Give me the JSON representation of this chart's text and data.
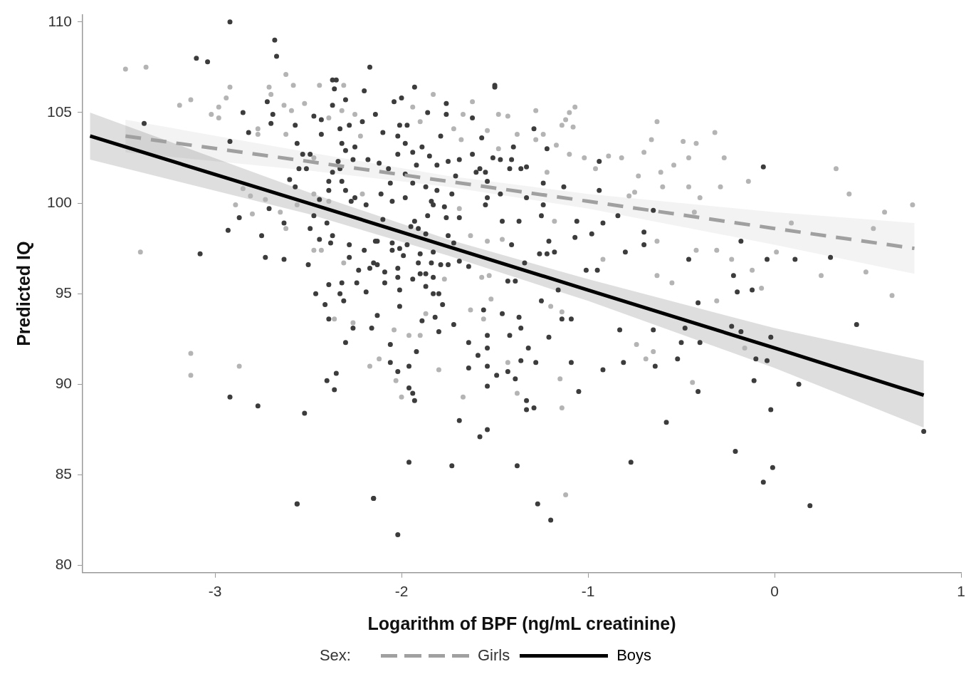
{
  "chart_data": {
    "type": "scatter",
    "xlabel": "Logarithm of BPF (ng/mL creatinine)",
    "ylabel": "Predicted IQ",
    "legend_title": "Sex:",
    "legend": "bottom",
    "marker": "circle",
    "grid": false,
    "xlim": [
      -3.71,
      1
    ],
    "xticks": [
      -3,
      -2,
      -1,
      0,
      1
    ],
    "ylim": [
      79.6,
      110.4
    ],
    "yticks": [
      80,
      85,
      90,
      95,
      100,
      105,
      110
    ],
    "series": [
      {
        "color": "#b4b4b4",
        "x": [
          -3.48,
          -3.37,
          -3.19,
          -3.13,
          -2.92,
          -2.94,
          -2.98,
          -3.02,
          -2.98,
          -2.77,
          -2.77,
          -2.62,
          -2.58,
          -2.71,
          -2.7,
          -2.63,
          -2.59,
          -2.52,
          -2.44,
          -2.31,
          -2.62,
          -2.47,
          -2.47,
          -2.85,
          -2.81,
          -2.73,
          -2.89,
          -2.8,
          -2.65,
          -2.62,
          -2.56,
          -2.47,
          -2.43,
          -3.4,
          -2.31,
          -2.39,
          -2.32,
          -2.25,
          -2.22,
          -2.21,
          -2.39,
          -3.13,
          -3.13,
          -2.87,
          -2.17,
          -2.36,
          -2.26,
          -1.83,
          -1.62,
          -1.28,
          -1.07,
          -1.1,
          -1.12,
          -1.43,
          -1.48,
          -1.67,
          -0.63,
          -0.66,
          -0.7,
          -1.08,
          -1.14,
          -1.24,
          -1.38,
          -1.28,
          -1.17,
          -1.1,
          -1.02,
          -0.96,
          -0.82,
          -0.89,
          -0.73,
          -0.61,
          -0.6,
          -0.78,
          -0.75,
          -1.22,
          -1.18,
          -0.92,
          -0.63,
          -0.63,
          -1.54,
          -1.46,
          -1.63,
          -1.57,
          -1.53,
          -1.77,
          -1.69,
          -1.72,
          -1.68,
          -1.54,
          -1.48,
          -1.94,
          -1.9,
          -0.32,
          -0.49,
          -0.42,
          -0.46,
          -0.27,
          -0.54,
          -0.46,
          -0.29,
          -0.14,
          -0.4,
          0.33,
          0.4,
          0.59,
          0.74,
          0.53,
          0.09,
          -0.43,
          -0.42,
          -0.31,
          -0.23,
          0.01,
          -0.12,
          0.25,
          0.49,
          -0.55,
          -0.07,
          0.63,
          -0.31,
          -0.16,
          -0.44,
          -2.04,
          -1.96,
          -1.9,
          -1.87,
          -2.12,
          -2.03,
          -2.0,
          -1.8,
          -1.67,
          -1.38,
          -1.43,
          -1.15,
          -1.14,
          -1.12,
          -0.74,
          -0.65,
          -0.69,
          -1.2,
          -1.14,
          -1.63,
          -1.52,
          -1.56
        ],
        "values": [
          107.4,
          107.5,
          105.4,
          105.7,
          106.4,
          105.8,
          105.3,
          104.9,
          104.7,
          104.1,
          103.8,
          107.1,
          106.5,
          106.4,
          106.0,
          105.4,
          105.1,
          105.5,
          106.5,
          106.5,
          103.8,
          102.5,
          100.5,
          100.8,
          100.4,
          100.2,
          99.9,
          99.4,
          99.5,
          98.6,
          99.9,
          97.4,
          97.4,
          97.3,
          96.7,
          104.7,
          105.1,
          104.9,
          103.7,
          100.5,
          100.1,
          91.7,
          90.5,
          91.0,
          91.0,
          93.6,
          93.4,
          106.0,
          105.6,
          105.1,
          105.3,
          105.0,
          104.6,
          104.8,
          104.9,
          104.9,
          104.5,
          103.5,
          102.8,
          104.2,
          104.3,
          103.8,
          103.8,
          103.5,
          103.2,
          102.7,
          102.5,
          101.9,
          102.5,
          102.6,
          101.5,
          101.7,
          100.9,
          100.4,
          100.6,
          101.7,
          99.0,
          96.9,
          97.9,
          96.0,
          97.9,
          98.0,
          98.2,
          95.9,
          96.0,
          95.8,
          99.7,
          104.1,
          103.5,
          104.0,
          103.0,
          105.3,
          104.5,
          103.9,
          103.4,
          103.3,
          102.5,
          102.5,
          102.1,
          100.9,
          100.9,
          101.2,
          100.3,
          101.9,
          100.5,
          99.5,
          99.9,
          98.6,
          98.9,
          99.5,
          97.4,
          97.4,
          96.9,
          97.3,
          96.3,
          96.0,
          96.2,
          95.6,
          95.3,
          94.9,
          94.6,
          92.0,
          90.1,
          93.0,
          92.7,
          92.7,
          93.9,
          91.4,
          90.2,
          89.3,
          90.8,
          89.3,
          89.5,
          91.2,
          90.3,
          88.7,
          83.9,
          92.2,
          91.8,
          91.4,
          94.3,
          94.0,
          94.1,
          94.7,
          93.6
        ]
      },
      {
        "color": "#3c3c3c",
        "x": [
          -2.92,
          -2.68,
          -2.67,
          -3.1,
          -3.04,
          -2.17,
          -1.5,
          -2.35,
          -3.38,
          -2.92,
          -2.85,
          -2.7,
          -2.69,
          -2.72,
          -2.82,
          -2.57,
          -2.56,
          -2.53,
          -2.55,
          -2.51,
          -2.6,
          -2.57,
          -2.71,
          -2.87,
          -2.93,
          -2.75,
          -2.73,
          -2.63,
          -3.08,
          -2.63,
          -2.5,
          -2.47,
          -2.4,
          -2.49,
          -2.44,
          -2.38,
          -2.37,
          -2.28,
          -2.2,
          -2.23,
          -2.17,
          -2.28,
          -2.39,
          -2.32,
          -2.24,
          -2.46,
          -2.33,
          -2.19,
          -2.49,
          -2.37,
          -2.36,
          -2.3,
          -2.37,
          -2.2,
          -2.47,
          -2.43,
          -2.28,
          -2.21,
          -2.14,
          -2.43,
          -2.33,
          -2.25,
          -2.32,
          -2.3,
          -2.18,
          -2.26,
          -2.34,
          -2.37,
          -2.33,
          -2.39,
          -2.32,
          -2.39,
          -2.3,
          -2.27,
          -2.25,
          -2.44,
          -2.19,
          -2.14,
          -2.15,
          -2.92,
          -2.77,
          -2.52,
          -2.56,
          -2.15,
          -2.4,
          -2.35,
          -2.36,
          -2.3,
          -2.26,
          -2.16,
          -2.41,
          -2.31,
          -2.39,
          -1.93,
          -1.5,
          -2.04,
          -2.0,
          -1.76,
          -1.86,
          -1.76,
          -1.62,
          -1.97,
          -2.01,
          -2.1,
          -2.02,
          -1.79,
          -1.57,
          -1.29,
          -1.89,
          -1.98,
          -1.94,
          -2.02,
          -1.85,
          -1.62,
          -1.4,
          -1.22,
          -1.51,
          -1.47,
          -1.41,
          -1.69,
          -1.75,
          -1.92,
          -2.12,
          -2.07,
          -1.81,
          -1.58,
          -1.6,
          -1.55,
          -1.42,
          -1.36,
          -1.33,
          -0.94,
          -0.65,
          -0.94,
          -0.92,
          -0.98,
          -0.84,
          -0.7,
          -0.7,
          -0.8,
          -1.01,
          -0.95,
          -1.13,
          -1.24,
          -1.24,
          -1.33,
          -1.25,
          -1.06,
          -1.07,
          -1.21,
          -1.26,
          -1.22,
          -1.18,
          -1.37,
          -1.46,
          -1.47,
          -1.41,
          -1.34,
          -1.54,
          -1.54,
          -1.55,
          -1.71,
          -1.73,
          -1.69,
          -1.76,
          -1.86,
          -1.77,
          -1.83,
          -1.84,
          -1.81,
          -1.87,
          -1.94,
          -1.98,
          -2.06,
          -2.11,
          -2.05,
          -1.98,
          -2.1,
          -1.93,
          -1.95,
          -1.91,
          -1.87,
          -1.75,
          -1.72,
          -2.13,
          -2.05,
          -1.97,
          -2.01,
          -1.9,
          -1.83,
          -2.05,
          -1.99,
          -1.91,
          -1.84,
          -1.79,
          -1.75,
          -1.69,
          -1.64,
          -2.13,
          -2.09,
          -2.02,
          -2.02,
          -1.94,
          -1.9,
          -1.87,
          -1.83,
          -2.09,
          -2.01,
          -1.87,
          -1.83,
          -1.8,
          -1.43,
          -1.39,
          -1.16,
          -0.83,
          -0.65,
          -0.92,
          -0.81,
          -0.64,
          -1.05,
          -1.09,
          -1.09,
          -1.14,
          -1.21,
          -1.28,
          -1.32,
          -1.36,
          -1.37,
          -1.42,
          -1.36,
          -1.39,
          -1.43,
          -1.49,
          -1.33,
          -1.33,
          -1.29,
          -1.54,
          -1.54,
          -1.54,
          -1.54,
          -1.59,
          -1.64,
          -1.64,
          -1.72,
          -1.8,
          -1.89,
          -1.96,
          -2.02,
          -2.06,
          -1.96,
          -1.94,
          -1.93,
          -1.92,
          -2.06,
          -2.01,
          -2.13,
          -1.82,
          -1.78,
          -1.56,
          -1.46,
          -1.25,
          -2.02,
          -1.96,
          -1.73,
          -1.38,
          -1.27,
          -1.2,
          -1.69,
          -1.54,
          -1.58,
          -2.15,
          -2.56,
          -0.58,
          -0.77,
          -0.41,
          -0.23,
          -0.18,
          -0.02,
          -0.48,
          -0.5,
          -0.4,
          -0.52,
          -0.41,
          -0.1,
          -0.04,
          -0.11,
          0.13,
          -0.02,
          0.44,
          0.8,
          -0.21,
          -0.01,
          -0.06,
          0.19,
          -0.06,
          -0.18,
          -0.46,
          -0.04,
          0.11,
          0.3,
          -0.22,
          -0.2,
          -0.12
        ],
        "values": [
          110.0,
          109.0,
          108.1,
          108.0,
          107.8,
          107.5,
          106.5,
          106.8,
          104.4,
          103.4,
          105.0,
          104.4,
          104.9,
          105.6,
          103.9,
          104.3,
          103.3,
          102.7,
          101.9,
          101.9,
          101.3,
          100.9,
          99.7,
          99.2,
          98.5,
          98.2,
          97.0,
          96.9,
          97.2,
          98.9,
          96.6,
          99.3,
          98.9,
          98.6,
          98.0,
          97.8,
          98.2,
          97.7,
          97.4,
          96.3,
          96.4,
          97.0,
          95.5,
          95.6,
          95.6,
          95.0,
          95.0,
          95.1,
          102.7,
          106.8,
          106.3,
          105.7,
          105.4,
          106.2,
          104.8,
          104.6,
          104.3,
          104.5,
          104.9,
          103.8,
          104.1,
          103.1,
          103.3,
          102.9,
          102.4,
          102.4,
          102.3,
          101.7,
          101.9,
          101.2,
          101.2,
          100.7,
          100.7,
          100.1,
          100.3,
          100.2,
          99.9,
          97.9,
          96.7,
          89.3,
          88.8,
          88.4,
          83.4,
          83.7,
          90.2,
          90.6,
          89.7,
          92.3,
          93.1,
          93.1,
          94.4,
          94.6,
          93.6,
          106.4,
          106.4,
          105.6,
          105.8,
          105.5,
          105.0,
          104.9,
          104.7,
          104.3,
          104.3,
          103.9,
          103.7,
          103.7,
          103.6,
          104.1,
          103.1,
          103.3,
          102.8,
          102.7,
          102.6,
          102.7,
          103.1,
          103.0,
          102.5,
          102.4,
          102.4,
          102.4,
          102.3,
          102.1,
          102.2,
          101.9,
          102.1,
          101.9,
          101.7,
          101.7,
          101.9,
          101.9,
          102.0,
          102.3,
          99.6,
          100.7,
          98.9,
          98.3,
          99.3,
          98.4,
          97.7,
          97.3,
          96.3,
          96.3,
          100.9,
          101.1,
          99.9,
          100.3,
          99.3,
          99.0,
          98.1,
          97.9,
          97.2,
          97.2,
          97.3,
          99.0,
          99.0,
          100.5,
          97.7,
          96.7,
          101.2,
          100.3,
          99.9,
          101.5,
          100.5,
          99.2,
          99.2,
          99.3,
          99.8,
          99.9,
          100.1,
          100.7,
          100.9,
          101.1,
          101.6,
          101.1,
          100.5,
          100.1,
          100.3,
          99.1,
          99.0,
          98.7,
          98.6,
          98.3,
          98.2,
          97.8,
          97.9,
          97.8,
          97.7,
          97.5,
          97.2,
          97.3,
          97.4,
          97.1,
          96.7,
          96.7,
          96.6,
          96.6,
          96.8,
          96.5,
          96.6,
          96.2,
          96.4,
          95.9,
          95.8,
          96.1,
          96.1,
          95.9,
          95.6,
          95.2,
          95.4,
          95.0,
          95.0,
          95.7,
          95.7,
          95.2,
          93.0,
          93.0,
          90.8,
          91.2,
          91.0,
          89.6,
          91.2,
          93.6,
          93.6,
          92.6,
          91.2,
          92.0,
          93.1,
          93.7,
          92.7,
          91.3,
          90.3,
          90.7,
          90.5,
          89.1,
          88.6,
          88.7,
          91.0,
          89.9,
          92.0,
          92.7,
          91.6,
          92.3,
          90.9,
          93.3,
          92.9,
          93.5,
          91.0,
          90.7,
          91.2,
          89.8,
          89.5,
          89.1,
          91.8,
          92.2,
          94.3,
          93.8,
          93.7,
          94.4,
          94.1,
          93.9,
          94.6,
          81.7,
          85.7,
          85.5,
          85.5,
          83.4,
          82.5,
          88.0,
          87.5,
          87.1,
          83.7,
          83.4,
          87.9,
          85.7,
          94.5,
          93.2,
          92.9,
          92.6,
          93.1,
          92.3,
          92.3,
          91.4,
          89.6,
          91.4,
          91.3,
          90.2,
          90.0,
          88.6,
          93.3,
          87.4,
          86.3,
          85.4,
          84.6,
          83.3,
          102.0,
          97.9,
          96.9,
          96.9,
          96.9,
          97.0,
          96.0,
          95.1,
          95.2
        ]
      },
      {
        "type": "line",
        "name": "Girls",
        "color": "#a0a0a0",
        "line_style": "dashed",
        "marker": "none",
        "x": [
          -3.48,
          -2.5,
          -1.75,
          -1,
          0,
          0.75
        ],
        "values": [
          103.7,
          102.3,
          101.2,
          100.1,
          98.6,
          97.5
        ],
        "lower": [
          102.8,
          101.8,
          100.9,
          99.7,
          97.7,
          96.1
        ],
        "upper": [
          104.6,
          102.8,
          101.5,
          100.5,
          99.5,
          98.9
        ]
      },
      {
        "type": "line",
        "name": "Boys",
        "color": "#000000",
        "line_style": "solid",
        "marker": "none",
        "x": [
          -3.67,
          -2.5,
          -1.75,
          -1,
          0,
          0.8
        ],
        "values": [
          103.7,
          100.0,
          97.6,
          95.2,
          92.0,
          89.4
        ],
        "lower": [
          102.4,
          99.4,
          97.1,
          94.6,
          90.9,
          87.6
        ],
        "upper": [
          105.0,
          100.6,
          98.0,
          95.8,
          93.1,
          91.3
        ]
      }
    ]
  }
}
